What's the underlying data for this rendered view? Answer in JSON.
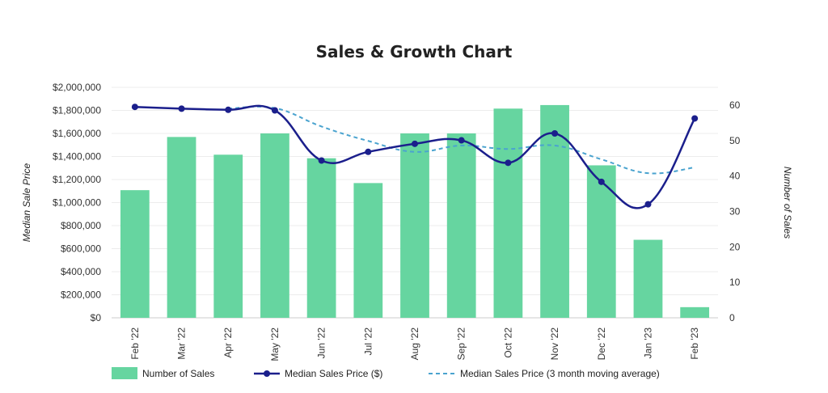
{
  "chart_data": {
    "type": "bar",
    "title": "Sales & Growth Chart",
    "categories": [
      "Feb '22",
      "Mar '22",
      "Apr '22",
      "May '22",
      "Jun '22",
      "Jul '22",
      "Aug '22",
      "Sep '22",
      "Oct '22",
      "Nov '22",
      "Dec '22",
      "Jan '23",
      "Feb '23"
    ],
    "left_axis": {
      "label": "Median Sale Price",
      "range": [
        0,
        2000000
      ],
      "ticks": [
        0,
        200000,
        400000,
        600000,
        800000,
        1000000,
        1200000,
        1400000,
        1600000,
        1800000,
        2000000
      ],
      "tick_labels": [
        "$0",
        "$200,000",
        "$400,000",
        "$600,000",
        "$800,000",
        "$1,000,000",
        "$1,200,000",
        "$1,400,000",
        "$1,600,000",
        "$1,800,000",
        "$2,000,000"
      ]
    },
    "right_axis": {
      "label": "Number of Sales",
      "range": [
        0,
        65
      ],
      "ticks": [
        0,
        10,
        20,
        30,
        40,
        50,
        60
      ],
      "tick_labels": [
        "0",
        "10",
        "20",
        "30",
        "40",
        "50",
        "60"
      ]
    },
    "grid": true,
    "legend_position": "bottom",
    "series": [
      {
        "name": "Number of Sales",
        "kind": "bar",
        "axis": "right",
        "color": "#66d5a0",
        "values": [
          36,
          51,
          46,
          52,
          45,
          38,
          52,
          52,
          59,
          60,
          43,
          22,
          3
        ]
      },
      {
        "name": "Median Sales Price ($)",
        "kind": "line",
        "axis": "left",
        "color": "#1b1f8c",
        "markers": true,
        "values": [
          1830000,
          1815000,
          1805000,
          1800000,
          1365000,
          1440000,
          1510000,
          1540000,
          1345000,
          1600000,
          1180000,
          985000,
          1730000
        ]
      },
      {
        "name": "Median Sales Price (3 month moving average)",
        "kind": "line",
        "axis": "left",
        "color": "#4aa3cf",
        "dashed": true,
        "values": [
          null,
          null,
          1815000,
          1820000,
          1660000,
          1535000,
          1440000,
          1495000,
          1465000,
          1495000,
          1375000,
          1255000,
          1305000
        ]
      }
    ]
  }
}
